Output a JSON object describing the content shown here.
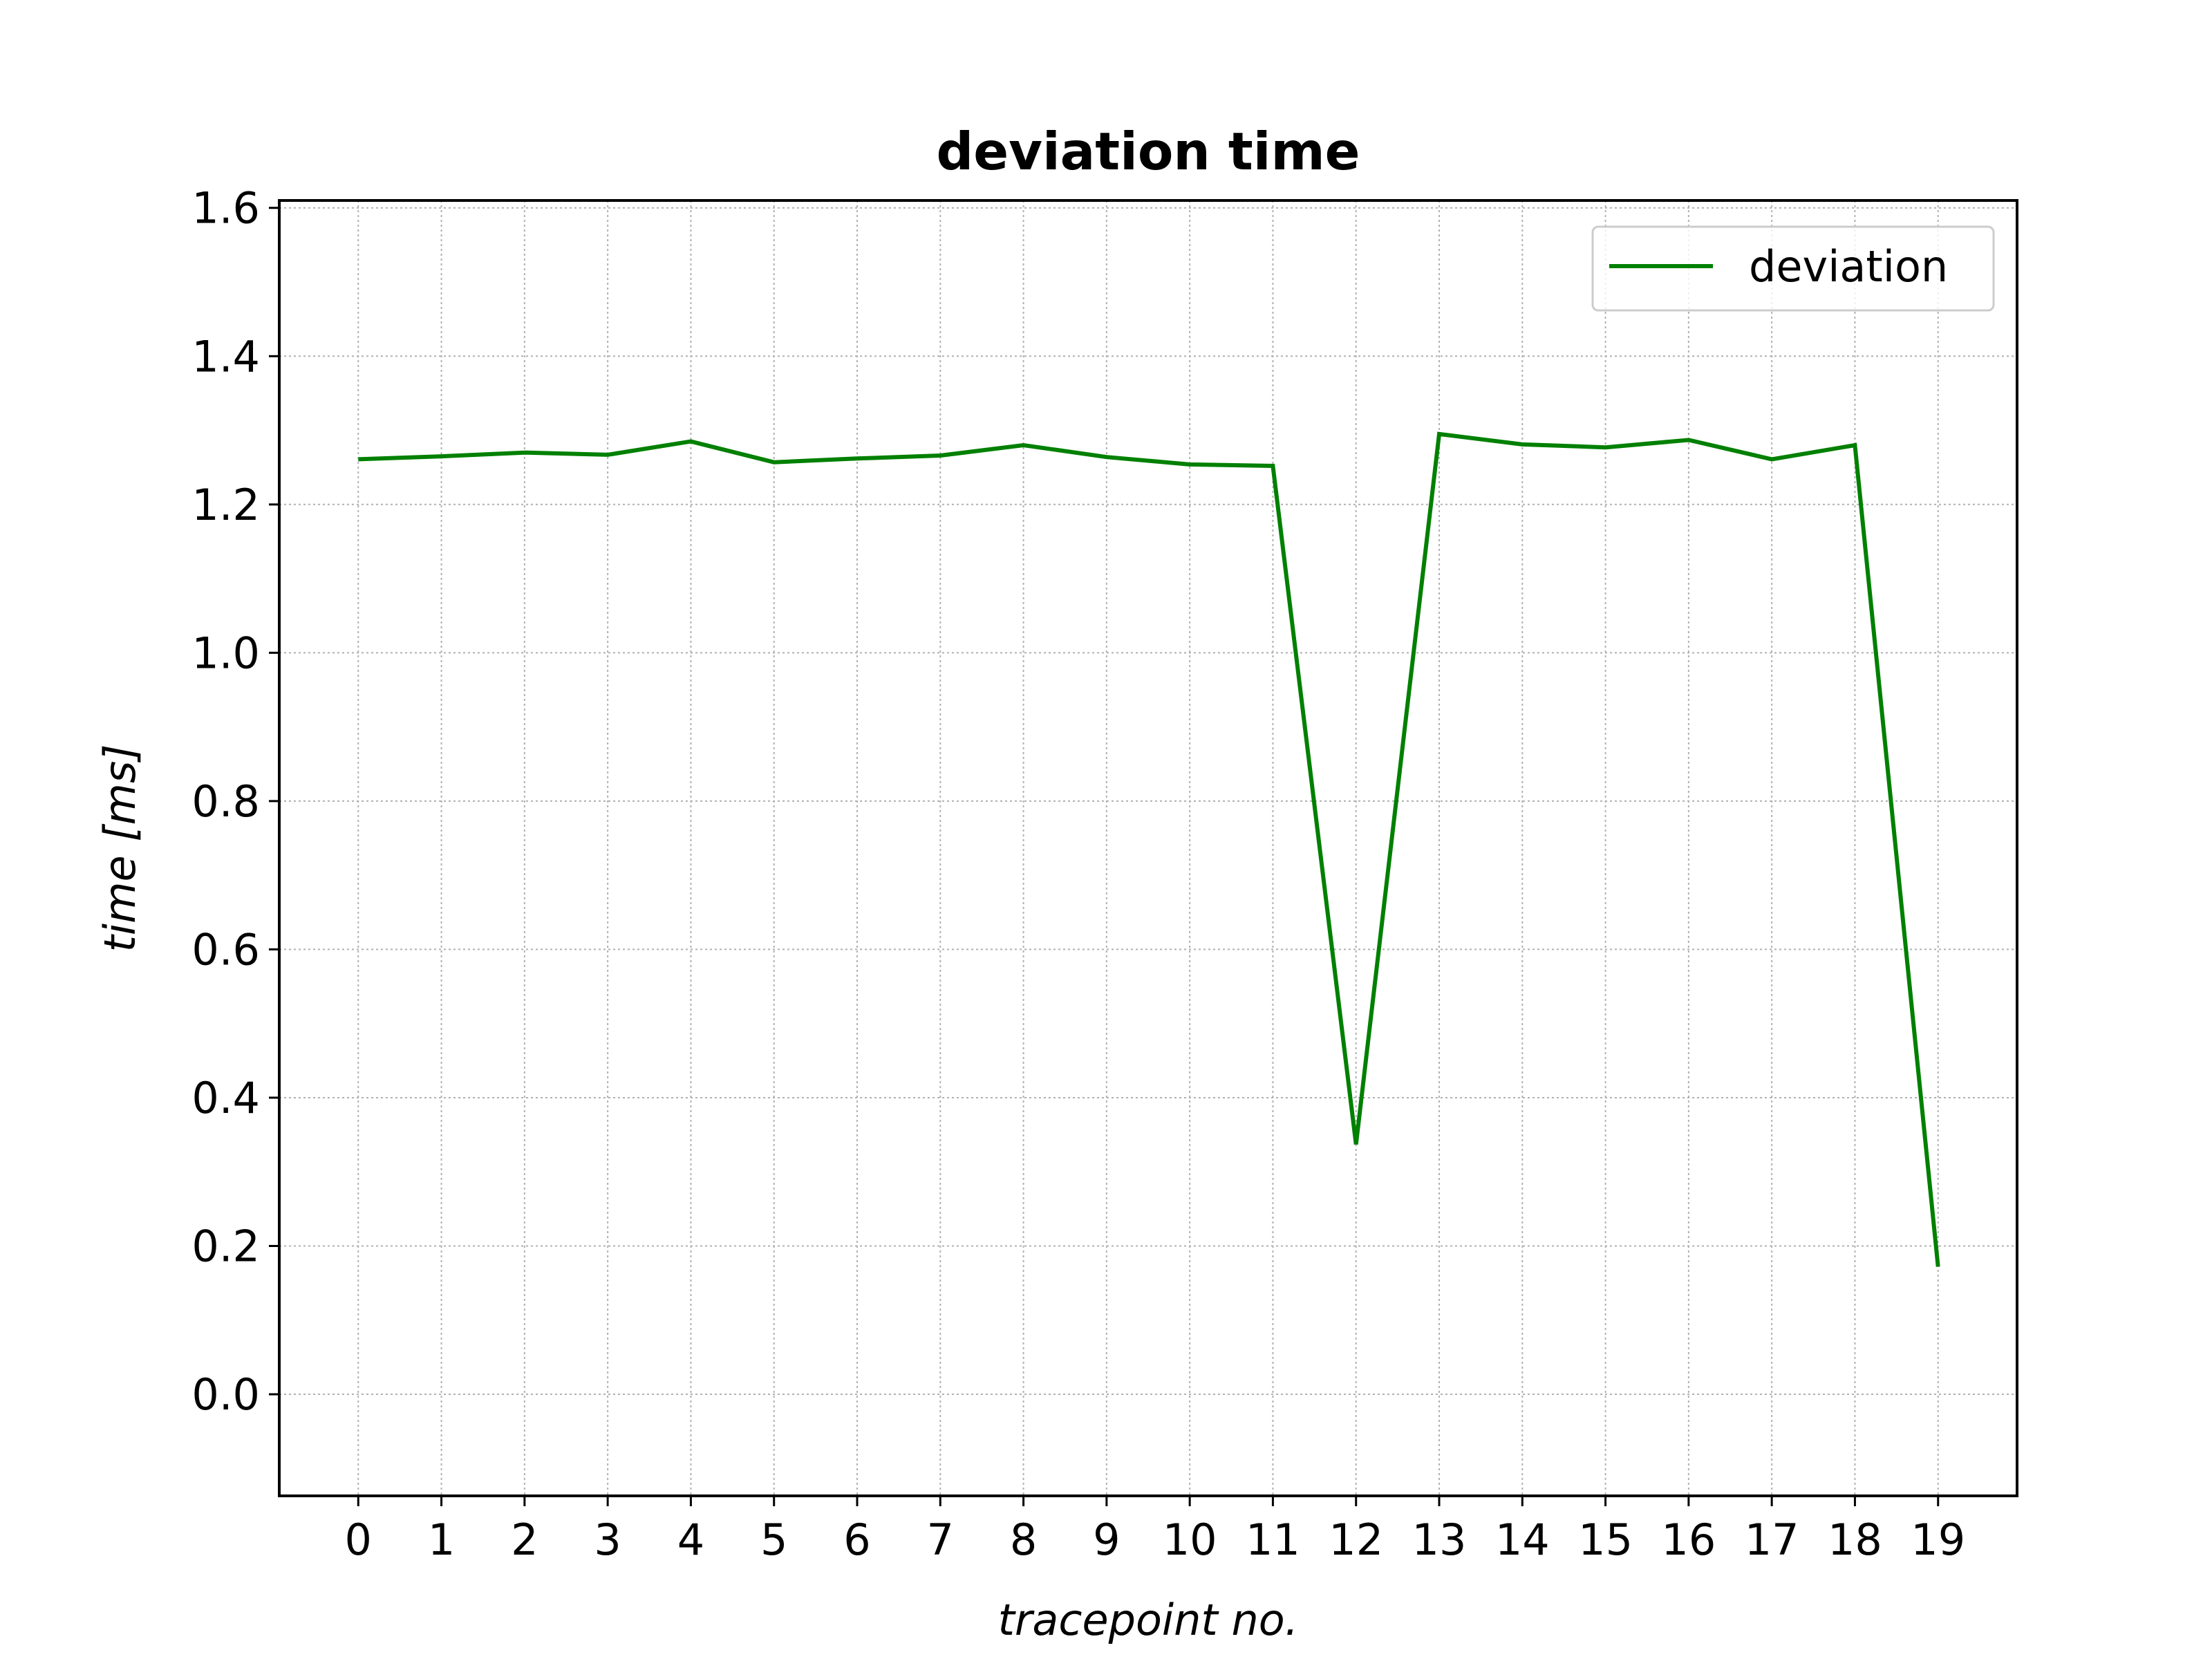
{
  "chart_data": {
    "type": "line",
    "title": "deviation time",
    "xlabel": "tracepoint no.",
    "ylabel": "time [ms]",
    "x": [
      0,
      1,
      2,
      3,
      4,
      5,
      6,
      7,
      8,
      9,
      10,
      11,
      12,
      13,
      14,
      15,
      16,
      17,
      18,
      19
    ],
    "x_ticks": [
      "0",
      "1",
      "2",
      "3",
      "4",
      "5",
      "6",
      "7",
      "8",
      "9",
      "10",
      "11",
      "12",
      "13",
      "14",
      "15",
      "16",
      "17",
      "18",
      "19"
    ],
    "y_ticks": [
      "0.0",
      "0.2",
      "0.4",
      "0.6",
      "0.8",
      "1.0",
      "1.2",
      "1.4",
      "1.6"
    ],
    "y_tick_values": [
      0.0,
      0.2,
      0.4,
      0.6,
      0.8,
      1.0,
      1.2,
      1.4,
      1.6
    ],
    "xlim": [
      -0.95,
      19.95
    ],
    "ylim": [
      -0.137,
      1.61
    ],
    "grid": true,
    "legend_position": "upper right",
    "series": [
      {
        "name": "deviation",
        "color": "#008000",
        "values": [
          1.261,
          1.265,
          1.27,
          1.267,
          1.285,
          1.257,
          1.262,
          1.266,
          1.28,
          1.264,
          1.254,
          1.252,
          0.337,
          1.295,
          1.281,
          1.277,
          1.287,
          1.261,
          1.28,
          0.172
        ]
      }
    ]
  }
}
